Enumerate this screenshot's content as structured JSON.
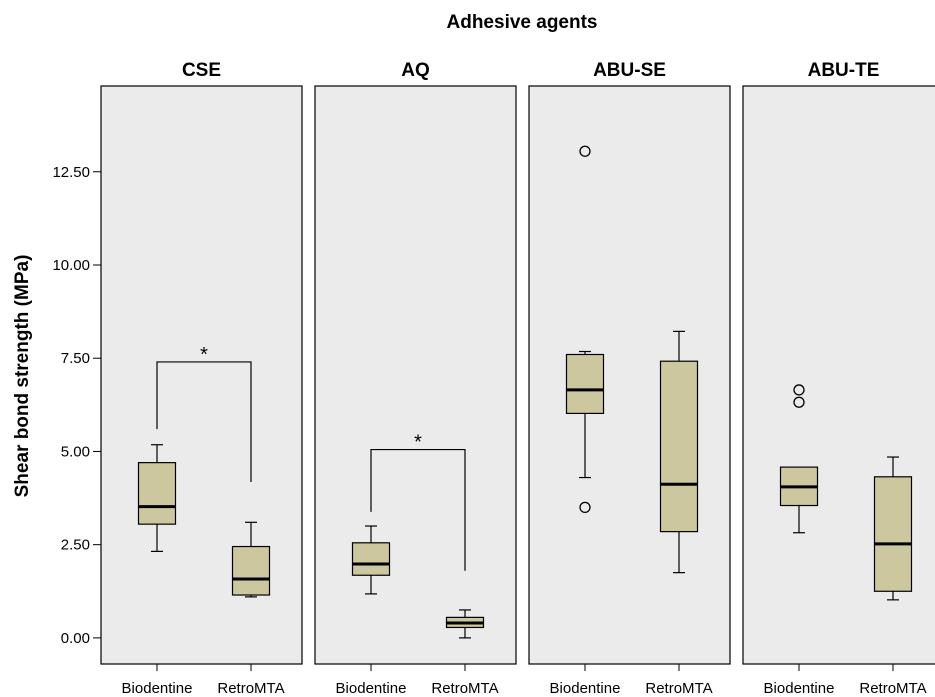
{
  "chart_data": {
    "type": "boxplot",
    "title": "Adhesive agents",
    "ylabel": "Shear bond strength (MPa)",
    "xlabel": "",
    "ylim": [
      -0.7,
      14.8
    ],
    "yticks": [
      0,
      2.5,
      5,
      7.5,
      10,
      12.5
    ],
    "ytick_labels": [
      "0.00",
      "2.50",
      "5.00",
      "7.50",
      "10.00",
      "12.50"
    ],
    "categories": [
      "Biodentine",
      "RetroMTA"
    ],
    "panel_bg": "#ebebeb",
    "box_fill": "#cdc79f",
    "panels": [
      {
        "name": "CSE",
        "boxes": [
          {
            "category": "Biodentine",
            "min": 2.32,
            "q1": 3.05,
            "median": 3.52,
            "q3": 4.7,
            "max": 5.18,
            "outliers": []
          },
          {
            "category": "RetroMTA",
            "min": 1.1,
            "q1": 1.15,
            "median": 1.58,
            "q3": 2.45,
            "max": 3.1,
            "outliers": []
          }
        ],
        "significance": {
          "label": "*",
          "y": 7.4,
          "left_drop": 5.6,
          "right_drop": 4.18
        }
      },
      {
        "name": "AQ",
        "boxes": [
          {
            "category": "Biodentine",
            "min": 1.18,
            "q1": 1.68,
            "median": 1.98,
            "q3": 2.55,
            "max": 3.0,
            "outliers": []
          },
          {
            "category": "RetroMTA",
            "min": 0.0,
            "q1": 0.28,
            "median": 0.4,
            "q3": 0.55,
            "max": 0.75,
            "outliers": []
          }
        ],
        "significance": {
          "label": "*",
          "y": 5.05,
          "left_drop": 3.38,
          "right_drop": 1.8
        }
      },
      {
        "name": "ABU-SE",
        "boxes": [
          {
            "category": "Biodentine",
            "min": 4.3,
            "q1": 6.02,
            "median": 6.65,
            "q3": 7.6,
            "max": 7.68,
            "outliers": [
              13.05,
              3.5
            ]
          },
          {
            "category": "RetroMTA",
            "min": 1.75,
            "q1": 2.85,
            "median": 4.12,
            "q3": 7.42,
            "max": 8.22,
            "outliers": []
          }
        ]
      },
      {
        "name": "ABU-TE",
        "boxes": [
          {
            "category": "Biodentine",
            "min": 2.82,
            "q1": 3.55,
            "median": 4.05,
            "q3": 4.58,
            "max": 4.58,
            "outliers": [
              6.65,
              6.32
            ]
          },
          {
            "category": "RetroMTA",
            "min": 1.02,
            "q1": 1.25,
            "median": 2.52,
            "q3": 4.32,
            "max": 4.85,
            "outliers": []
          }
        ]
      }
    ]
  }
}
